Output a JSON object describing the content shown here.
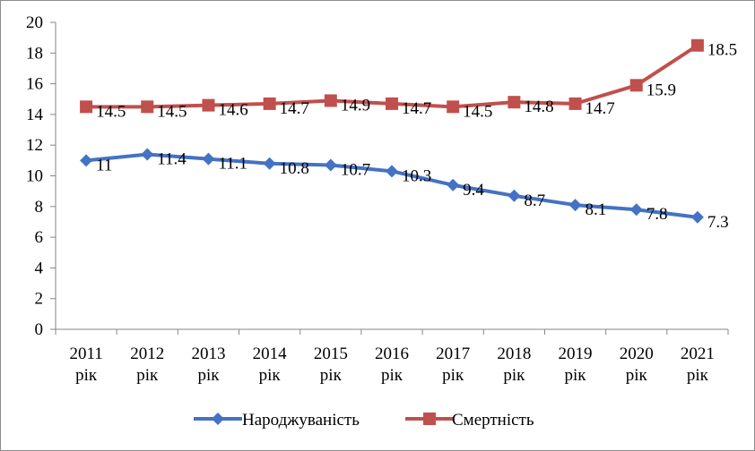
{
  "chart_data": {
    "type": "line",
    "categories": [
      [
        "2011",
        "рік"
      ],
      [
        "2012",
        "рік"
      ],
      [
        "2013",
        "рік"
      ],
      [
        "2014",
        "рік"
      ],
      [
        "2015",
        "рік"
      ],
      [
        "2016",
        "рік"
      ],
      [
        "2017",
        "рік"
      ],
      [
        "2018",
        "рік"
      ],
      [
        "2019",
        "рік"
      ],
      [
        "2020",
        "рік"
      ],
      [
        "2021",
        "рік"
      ]
    ],
    "ylim": [
      0,
      20
    ],
    "yticks": [
      "0",
      "2",
      "4",
      "6",
      "8",
      "10",
      "12",
      "14",
      "16",
      "18",
      "20"
    ],
    "grid": false,
    "legend_position": "bottom",
    "series": [
      {
        "name": "Народжуваність",
        "color": "#4472C4",
        "marker": "diamond",
        "values": [
          11,
          11.4,
          11.1,
          10.8,
          10.7,
          10.3,
          9.4,
          8.7,
          8.1,
          7.8,
          7.3
        ],
        "labels": [
          "11",
          "11.4",
          "11.1",
          "10.8",
          "10.7",
          "10.3",
          "9.4",
          "8.7",
          "8.1",
          "7.8",
          "7.3"
        ]
      },
      {
        "name": "Смертність",
        "color": "#C0504D",
        "marker": "square",
        "values": [
          14.5,
          14.5,
          14.6,
          14.7,
          14.9,
          14.7,
          14.5,
          14.8,
          14.7,
          15.9,
          18.5
        ],
        "labels": [
          "14.5",
          "14.5",
          "14.6",
          "14.7",
          "14.9",
          "14.7",
          "14.5",
          "14.8",
          "14.7",
          "15.9",
          "18.5"
        ]
      }
    ]
  }
}
